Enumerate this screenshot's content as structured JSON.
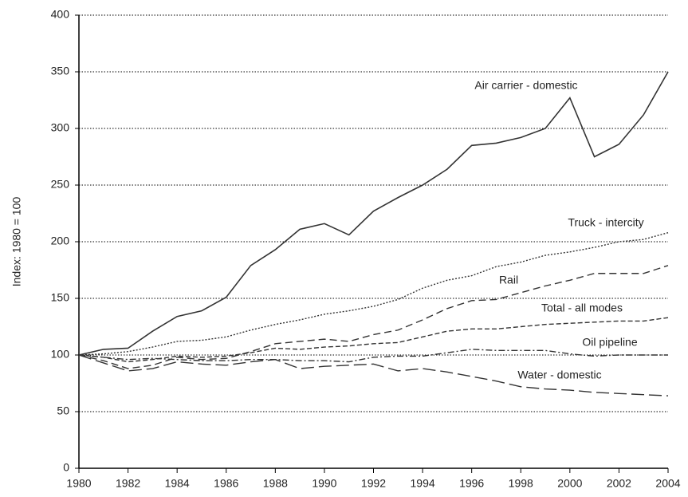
{
  "chart_data": {
    "type": "line",
    "ylabel": "Index: 1980 = 100",
    "x": [
      1980,
      1981,
      1982,
      1983,
      1984,
      1985,
      1986,
      1987,
      1988,
      1989,
      1990,
      1991,
      1992,
      1993,
      1994,
      1995,
      1996,
      1997,
      1998,
      1999,
      2000,
      2001,
      2002,
      2003,
      2004
    ],
    "xlim": [
      1980,
      2004
    ],
    "xticks": [
      1980,
      1982,
      1984,
      1986,
      1988,
      1990,
      1992,
      1994,
      1996,
      1998,
      2000,
      2002,
      2004
    ],
    "ylim": [
      0,
      400
    ],
    "yticks": [
      0,
      50,
      100,
      150,
      200,
      250,
      300,
      350,
      400
    ],
    "grid": true,
    "series": [
      {
        "name": "Air carrier - domestic",
        "color": "#333333",
        "dash": "solid",
        "values": [
          100,
          105,
          106,
          121,
          134,
          139,
          151,
          179,
          193,
          211,
          216,
          206,
          227,
          239,
          250,
          264,
          285,
          287,
          292,
          300,
          327,
          275,
          286,
          312,
          350
        ]
      },
      {
        "name": "Truck - intercity",
        "color": "#333333",
        "dash": "dotted",
        "values": [
          100,
          101,
          103,
          107,
          112,
          113,
          116,
          122,
          127,
          131,
          136,
          139,
          143,
          149,
          159,
          166,
          170,
          178,
          182,
          188,
          191,
          195,
          200,
          202,
          208
        ]
      },
      {
        "name": "Rail",
        "color": "#333333",
        "dash": "dashed",
        "values": [
          100,
          95,
          88,
          91,
          98,
          96,
          97,
          103,
          110,
          112,
          114,
          112,
          118,
          122,
          131,
          141,
          148,
          149,
          155,
          161,
          166,
          172,
          172,
          172,
          179
        ]
      },
      {
        "name": "Total - all modes",
        "color": "#333333",
        "dash": "short-dashed",
        "values": [
          100,
          98,
          94,
          96,
          99,
          98,
          99,
          102,
          106,
          105,
          107,
          108,
          110,
          111,
          116,
          121,
          123,
          123,
          125,
          127,
          128,
          129,
          130,
          130,
          133
        ]
      },
      {
        "name": "Oil pipeline",
        "color": "#333333",
        "dash": "dash-dot",
        "values": [
          100,
          98,
          96,
          97,
          96,
          95,
          95,
          96,
          96,
          95,
          95,
          94,
          98,
          99,
          99,
          102,
          105,
          104,
          104,
          104,
          101,
          99,
          100,
          100,
          100
        ]
      },
      {
        "name": "Water - domestic",
        "color": "#333333",
        "dash": "long-dashed",
        "values": [
          100,
          93,
          86,
          88,
          94,
          92,
          91,
          94,
          96,
          88,
          90,
          91,
          92,
          86,
          88,
          85,
          81,
          77,
          72,
          70,
          69,
          67,
          66,
          65,
          64
        ]
      }
    ]
  }
}
